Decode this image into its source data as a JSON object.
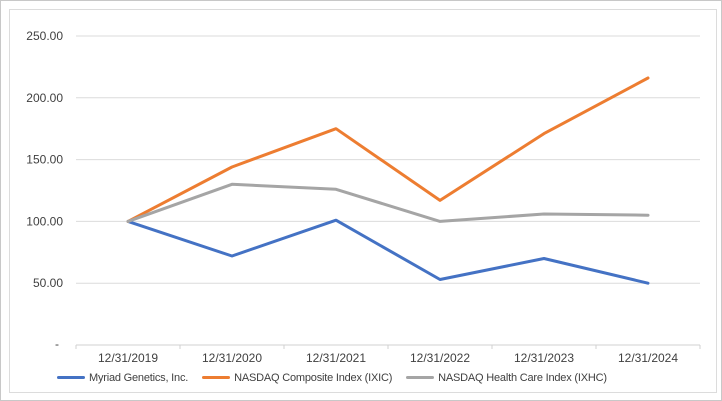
{
  "chart_data": {
    "type": "line",
    "title": "",
    "xlabel": "",
    "ylabel": "",
    "categories": [
      "12/31/2019",
      "12/31/2020",
      "12/31/2021",
      "12/31/2022",
      "12/31/2023",
      "12/31/2024"
    ],
    "series": [
      {
        "name": "Myriad Genetics, Inc.",
        "color": "#4472C4",
        "values": [
          100,
          72,
          101,
          53,
          70,
          50
        ]
      },
      {
        "name": "NASDAQ Composite Index (IXIC)",
        "color": "#ED7D31",
        "values": [
          100,
          144,
          175,
          117,
          171,
          216
        ]
      },
      {
        "name": "NASDAQ Health Care Index (IXHC)",
        "color": "#A5A5A5",
        "values": [
          100,
          130,
          126,
          100,
          106,
          105
        ]
      }
    ],
    "ylim": [
      0,
      250
    ],
    "y_step": 50,
    "y_tick_labels": [
      "250.00",
      "200.00",
      "150.00",
      "100.00",
      "50.00",
      "-"
    ],
    "grid": true,
    "legend_position": "bottom",
    "line_width": 3
  },
  "colors": {
    "grid": "#dbdbdb",
    "axis": "#d0d0d0",
    "text": "#404040",
    "frame_border": "#dcdcdc",
    "outer_border": "#c8c8c8",
    "background": "#ffffff"
  }
}
